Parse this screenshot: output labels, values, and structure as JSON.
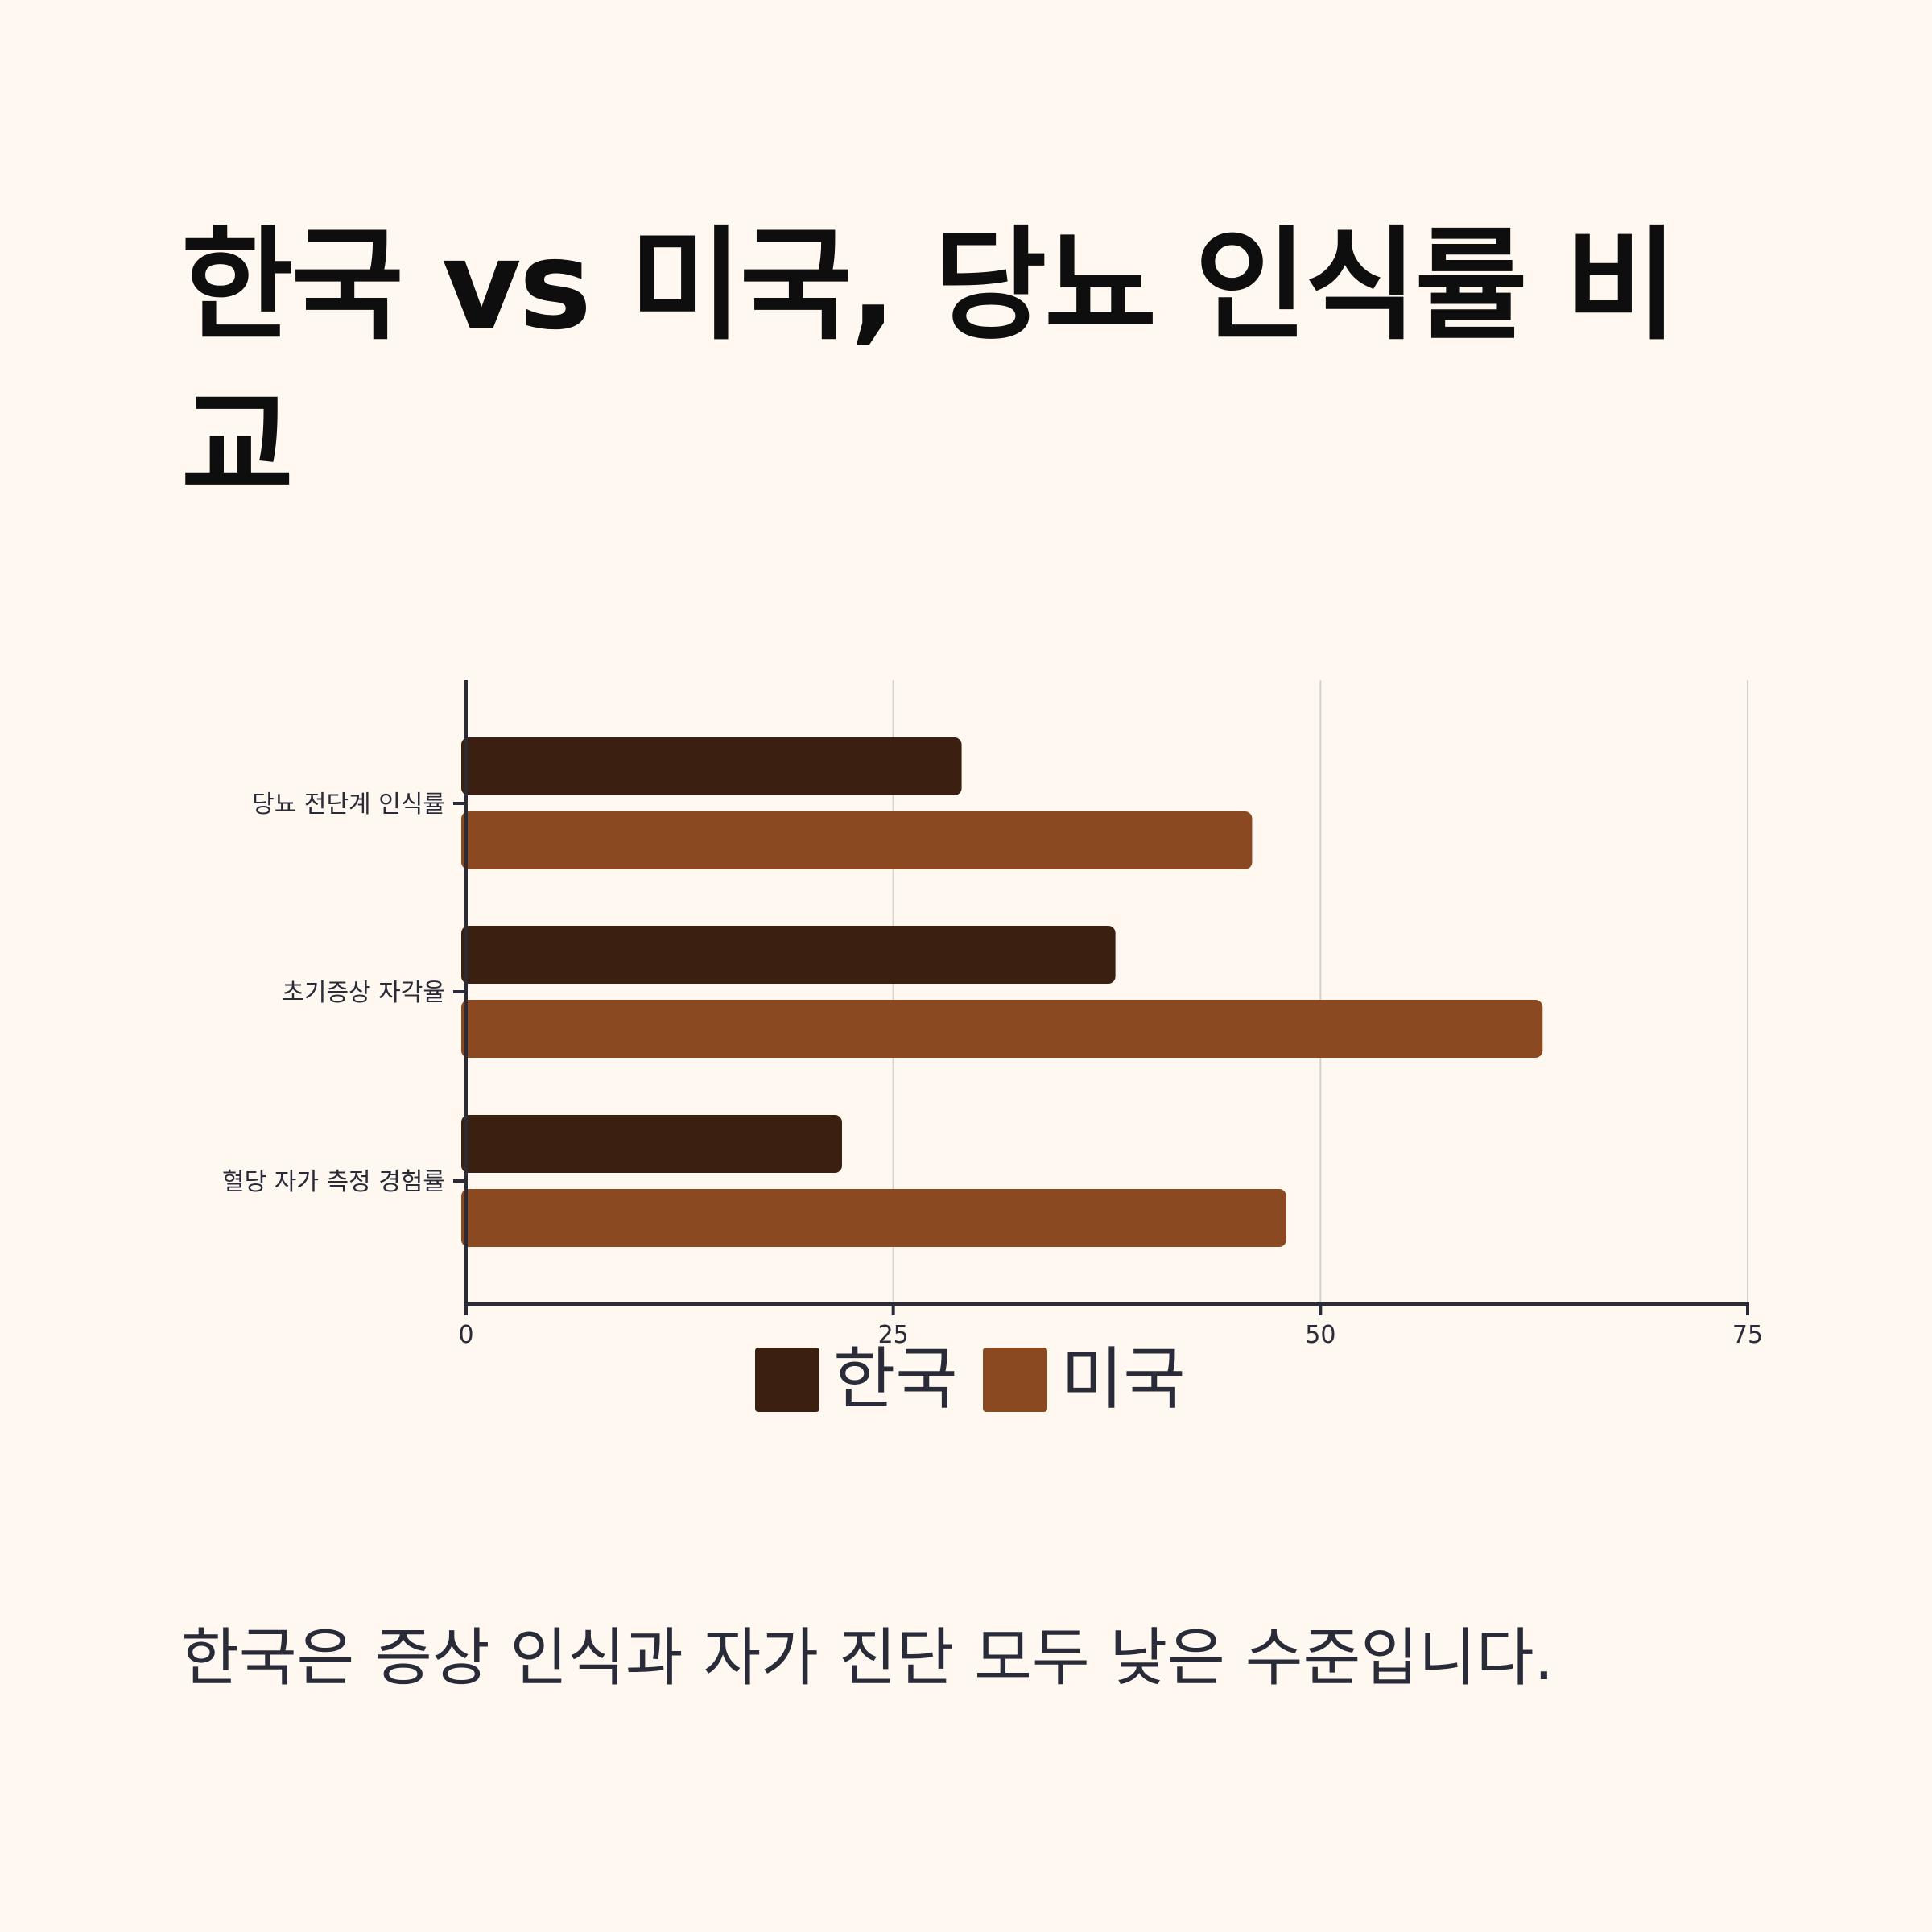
{
  "title": "한국 vs 미국, 당뇨 인식률 비교",
  "subtitle": "한국은 증상 인식과 자가 진단 모두 낮은 수준입니다.",
  "colors": {
    "background": "#fef8f1",
    "korea": "#3b1f10",
    "usa": "#8b4922",
    "axis": "#2a2b38",
    "grid": "#d4d0ca"
  },
  "chart_data": {
    "type": "bar",
    "orientation": "horizontal",
    "categories": [
      "당뇨 전단계 인식률",
      "초기증상 자각율",
      "혈당 자가 측정 경험률"
    ],
    "series": [
      {
        "name": "한국",
        "color": "#3b1f10",
        "values": [
          29,
          38,
          22
        ]
      },
      {
        "name": "미국",
        "color": "#8b4922",
        "values": [
          46,
          63,
          48
        ]
      }
    ],
    "xlim": [
      0,
      75
    ],
    "xticks": [
      0,
      25,
      50,
      75
    ],
    "grid": true,
    "legend_position": "bottom-center"
  }
}
